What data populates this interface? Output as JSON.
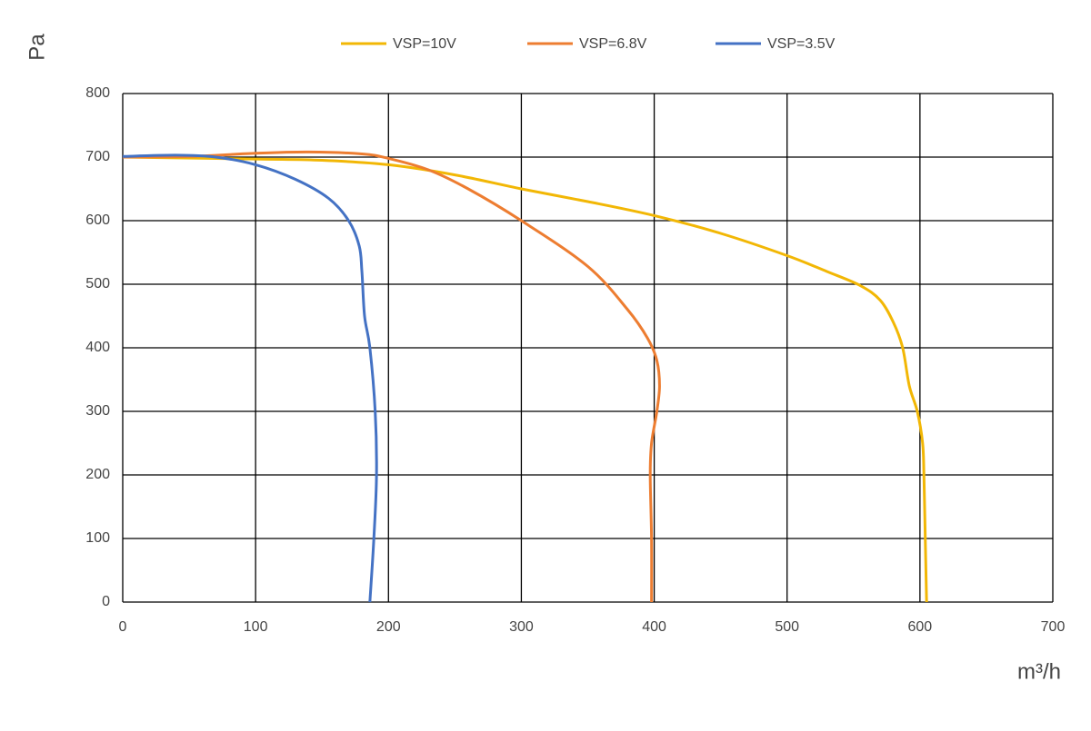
{
  "chart_data": {
    "type": "line",
    "x_label": "m³/h",
    "y_label": "Pa",
    "xlim": [
      0,
      700
    ],
    "xticks": [
      0,
      100,
      200,
      300,
      400,
      500,
      600,
      700
    ],
    "ylim": [
      0,
      800
    ],
    "yticks": [
      0,
      100,
      200,
      300,
      400,
      500,
      600,
      700,
      800
    ],
    "grid": true,
    "legend": "top",
    "series": [
      {
        "name": "VSP=10V",
        "color": "#f2b705",
        "x": [
          0,
          100,
          150,
          200,
          250,
          300,
          350,
          400,
          450,
          500,
          530,
          555,
          570,
          580,
          587,
          592,
          598,
          602,
          603,
          604,
          605
        ],
        "values": [
          700,
          697,
          695,
          688,
          672,
          650,
          630,
          608,
          580,
          545,
          520,
          498,
          475,
          440,
          400,
          340,
          300,
          250,
          200,
          100,
          0
        ]
      },
      {
        "name": "VSP=6.8V",
        "color": "#ed7d31",
        "x": [
          0,
          50,
          100,
          140,
          180,
          200,
          230,
          260,
          300,
          350,
          380,
          395,
          402,
          404,
          402,
          398,
          397,
          398,
          398
        ],
        "values": [
          700,
          701,
          706,
          708,
          705,
          698,
          680,
          650,
          600,
          528,
          460,
          415,
          380,
          340,
          300,
          250,
          200,
          100,
          0
        ]
      },
      {
        "name": "VSP=3.5V",
        "color": "#4472c4",
        "x": [
          0,
          40,
          70,
          100,
          130,
          155,
          170,
          178,
          180,
          182,
          186,
          190,
          191,
          189,
          186
        ],
        "values": [
          701,
          703,
          700,
          688,
          665,
          635,
          600,
          560,
          520,
          450,
          400,
          300,
          200,
          100,
          0
        ]
      }
    ]
  }
}
